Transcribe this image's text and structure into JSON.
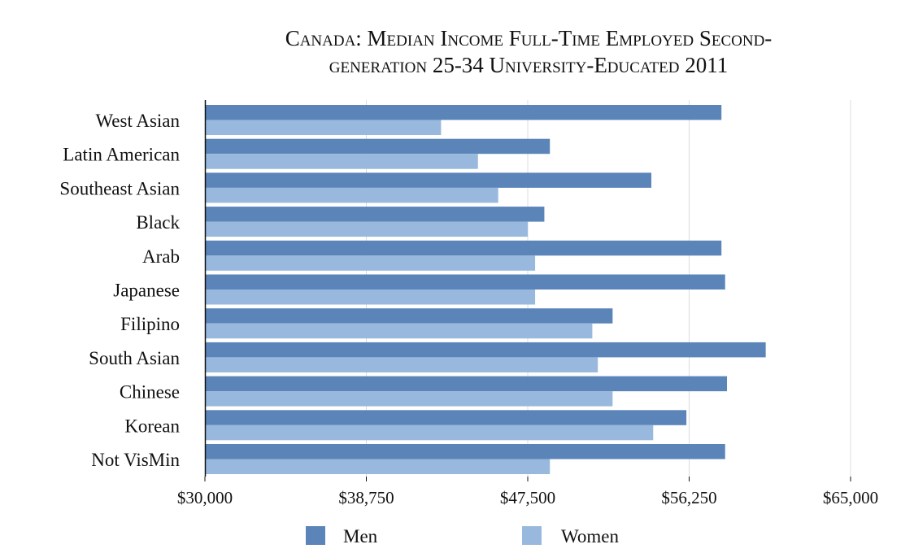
{
  "chart_data": {
    "type": "bar",
    "orientation": "horizontal",
    "title_lines": [
      "Canada: Median Income Full-Time Employed Second-",
      "generation 25-34 University-Educated 2011"
    ],
    "categories": [
      "West Asian",
      "Latin American",
      "Southeast Asian",
      "Black",
      "Arab",
      "Japanese",
      "Filipino",
      "South Asian",
      "Chinese",
      "Korean",
      "Not VisMin"
    ],
    "series": [
      {
        "name": "Men",
        "color": "#5b84b8",
        "values": [
          58000,
          48700,
          54200,
          48400,
          58000,
          58200,
          52100,
          60400,
          58300,
          56100,
          58200
        ]
      },
      {
        "name": "Women",
        "color": "#98b9dd",
        "values": [
          42800,
          44800,
          45900,
          47500,
          47900,
          47900,
          51000,
          51300,
          52100,
          54300,
          48700
        ]
      }
    ],
    "xlim": [
      30000,
      65000
    ],
    "x_ticks": [
      30000,
      38750,
      47500,
      56250,
      65000
    ],
    "x_tick_labels": [
      "$30,000",
      "$38,750",
      "$47,500",
      "$56,250",
      "$65,000"
    ],
    "xlabel": "",
    "ylabel": "",
    "grid": true,
    "legend_position": "bottom"
  }
}
